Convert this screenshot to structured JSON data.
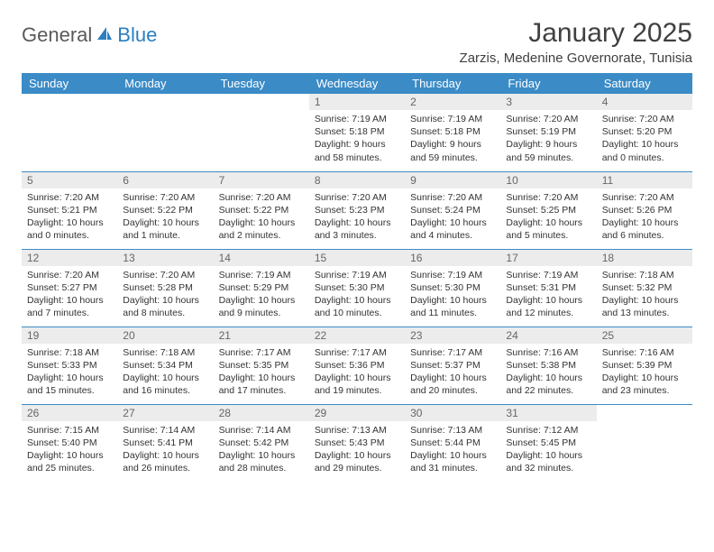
{
  "logo": {
    "text_general": "General",
    "text_blue": "Blue"
  },
  "title": "January 2025",
  "location": "Zarzis, Medenine Governorate, Tunisia",
  "header_bg": "#3b8bc7",
  "day_headers": [
    "Sunday",
    "Monday",
    "Tuesday",
    "Wednesday",
    "Thursday",
    "Friday",
    "Saturday"
  ],
  "weeks": [
    [
      null,
      null,
      null,
      {
        "n": "1",
        "sunrise": "7:19 AM",
        "sunset": "5:18 PM",
        "daylight": "9 hours and 58 minutes."
      },
      {
        "n": "2",
        "sunrise": "7:19 AM",
        "sunset": "5:18 PM",
        "daylight": "9 hours and 59 minutes."
      },
      {
        "n": "3",
        "sunrise": "7:20 AM",
        "sunset": "5:19 PM",
        "daylight": "9 hours and 59 minutes."
      },
      {
        "n": "4",
        "sunrise": "7:20 AM",
        "sunset": "5:20 PM",
        "daylight": "10 hours and 0 minutes."
      }
    ],
    [
      {
        "n": "5",
        "sunrise": "7:20 AM",
        "sunset": "5:21 PM",
        "daylight": "10 hours and 0 minutes."
      },
      {
        "n": "6",
        "sunrise": "7:20 AM",
        "sunset": "5:22 PM",
        "daylight": "10 hours and 1 minute."
      },
      {
        "n": "7",
        "sunrise": "7:20 AM",
        "sunset": "5:22 PM",
        "daylight": "10 hours and 2 minutes."
      },
      {
        "n": "8",
        "sunrise": "7:20 AM",
        "sunset": "5:23 PM",
        "daylight": "10 hours and 3 minutes."
      },
      {
        "n": "9",
        "sunrise": "7:20 AM",
        "sunset": "5:24 PM",
        "daylight": "10 hours and 4 minutes."
      },
      {
        "n": "10",
        "sunrise": "7:20 AM",
        "sunset": "5:25 PM",
        "daylight": "10 hours and 5 minutes."
      },
      {
        "n": "11",
        "sunrise": "7:20 AM",
        "sunset": "5:26 PM",
        "daylight": "10 hours and 6 minutes."
      }
    ],
    [
      {
        "n": "12",
        "sunrise": "7:20 AM",
        "sunset": "5:27 PM",
        "daylight": "10 hours and 7 minutes."
      },
      {
        "n": "13",
        "sunrise": "7:20 AM",
        "sunset": "5:28 PM",
        "daylight": "10 hours and 8 minutes."
      },
      {
        "n": "14",
        "sunrise": "7:19 AM",
        "sunset": "5:29 PM",
        "daylight": "10 hours and 9 minutes."
      },
      {
        "n": "15",
        "sunrise": "7:19 AM",
        "sunset": "5:30 PM",
        "daylight": "10 hours and 10 minutes."
      },
      {
        "n": "16",
        "sunrise": "7:19 AM",
        "sunset": "5:30 PM",
        "daylight": "10 hours and 11 minutes."
      },
      {
        "n": "17",
        "sunrise": "7:19 AM",
        "sunset": "5:31 PM",
        "daylight": "10 hours and 12 minutes."
      },
      {
        "n": "18",
        "sunrise": "7:18 AM",
        "sunset": "5:32 PM",
        "daylight": "10 hours and 13 minutes."
      }
    ],
    [
      {
        "n": "19",
        "sunrise": "7:18 AM",
        "sunset": "5:33 PM",
        "daylight": "10 hours and 15 minutes."
      },
      {
        "n": "20",
        "sunrise": "7:18 AM",
        "sunset": "5:34 PM",
        "daylight": "10 hours and 16 minutes."
      },
      {
        "n": "21",
        "sunrise": "7:17 AM",
        "sunset": "5:35 PM",
        "daylight": "10 hours and 17 minutes."
      },
      {
        "n": "22",
        "sunrise": "7:17 AM",
        "sunset": "5:36 PM",
        "daylight": "10 hours and 19 minutes."
      },
      {
        "n": "23",
        "sunrise": "7:17 AM",
        "sunset": "5:37 PM",
        "daylight": "10 hours and 20 minutes."
      },
      {
        "n": "24",
        "sunrise": "7:16 AM",
        "sunset": "5:38 PM",
        "daylight": "10 hours and 22 minutes."
      },
      {
        "n": "25",
        "sunrise": "7:16 AM",
        "sunset": "5:39 PM",
        "daylight": "10 hours and 23 minutes."
      }
    ],
    [
      {
        "n": "26",
        "sunrise": "7:15 AM",
        "sunset": "5:40 PM",
        "daylight": "10 hours and 25 minutes."
      },
      {
        "n": "27",
        "sunrise": "7:14 AM",
        "sunset": "5:41 PM",
        "daylight": "10 hours and 26 minutes."
      },
      {
        "n": "28",
        "sunrise": "7:14 AM",
        "sunset": "5:42 PM",
        "daylight": "10 hours and 28 minutes."
      },
      {
        "n": "29",
        "sunrise": "7:13 AM",
        "sunset": "5:43 PM",
        "daylight": "10 hours and 29 minutes."
      },
      {
        "n": "30",
        "sunrise": "7:13 AM",
        "sunset": "5:44 PM",
        "daylight": "10 hours and 31 minutes."
      },
      {
        "n": "31",
        "sunrise": "7:12 AM",
        "sunset": "5:45 PM",
        "daylight": "10 hours and 32 minutes."
      },
      null
    ]
  ],
  "labels": {
    "sunrise": "Sunrise:",
    "sunset": "Sunset:",
    "daylight": "Daylight:"
  }
}
